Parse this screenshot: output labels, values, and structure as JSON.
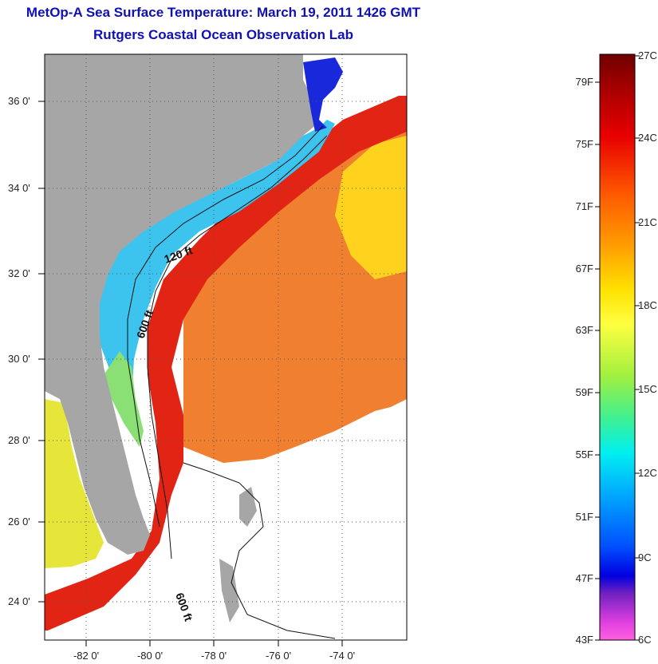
{
  "title": "MetOp-A Sea Surface Temperature:  March 19, 2011 1426 GMT",
  "subtitle": "Rutgers Coastal Ocean Observation Lab",
  "map": {
    "lat_ticks": [
      "36 0'",
      "34 0'",
      "32 0'",
      "30 0'",
      "28 0'",
      "26 0'",
      "24 0'"
    ],
    "lon_ticks": [
      "-82 0'",
      "-80 0'",
      "-78 0'",
      "-76 0'",
      "-74 0'"
    ],
    "contour_labels": [
      "120 ft",
      "600 ft",
      "600 ft"
    ],
    "colors": {
      "land": "#a6a6a6",
      "no_data": "#ffffff",
      "gulf_stream": "#e02010",
      "shelf": "#40c8f0"
    }
  },
  "colorbar": {
    "fahrenheit": [
      "79F",
      "75F",
      "71F",
      "67F",
      "63F",
      "59F",
      "55F",
      "51F",
      "47F",
      "43F"
    ],
    "celsius": [
      "27C",
      "24C",
      "21C",
      "18C",
      "15C",
      "12C",
      "9C",
      "6C"
    ]
  }
}
